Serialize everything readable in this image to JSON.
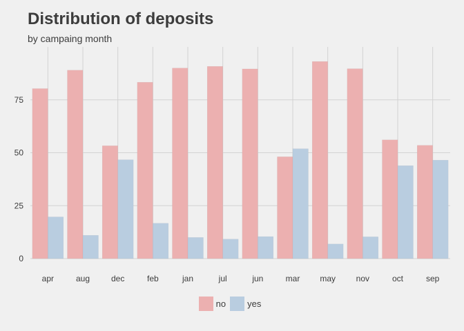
{
  "chart_data": {
    "type": "bar",
    "title": "Distribution of deposits",
    "subtitle": "by campaing month",
    "xlabel": "",
    "ylabel": "",
    "categories": [
      "apr",
      "aug",
      "dec",
      "feb",
      "jan",
      "jul",
      "jun",
      "mar",
      "may",
      "nov",
      "oct",
      "sep"
    ],
    "series": [
      {
        "name": "no",
        "color": "#ecb0b0",
        "values": [
          80.3,
          89.0,
          53.3,
          83.3,
          90.0,
          90.8,
          89.6,
          48.1,
          93.1,
          89.7,
          56.1,
          53.5
        ]
      },
      {
        "name": "yes",
        "color": "#b9cde0",
        "values": [
          19.7,
          11.0,
          46.7,
          16.7,
          10.0,
          9.2,
          10.4,
          51.9,
          6.9,
          10.3,
          43.9,
          46.5
        ]
      }
    ],
    "ylim": [
      0,
      100
    ],
    "yticks": [
      0,
      25,
      50,
      75
    ],
    "grid": true,
    "legend_position": "bottom"
  }
}
